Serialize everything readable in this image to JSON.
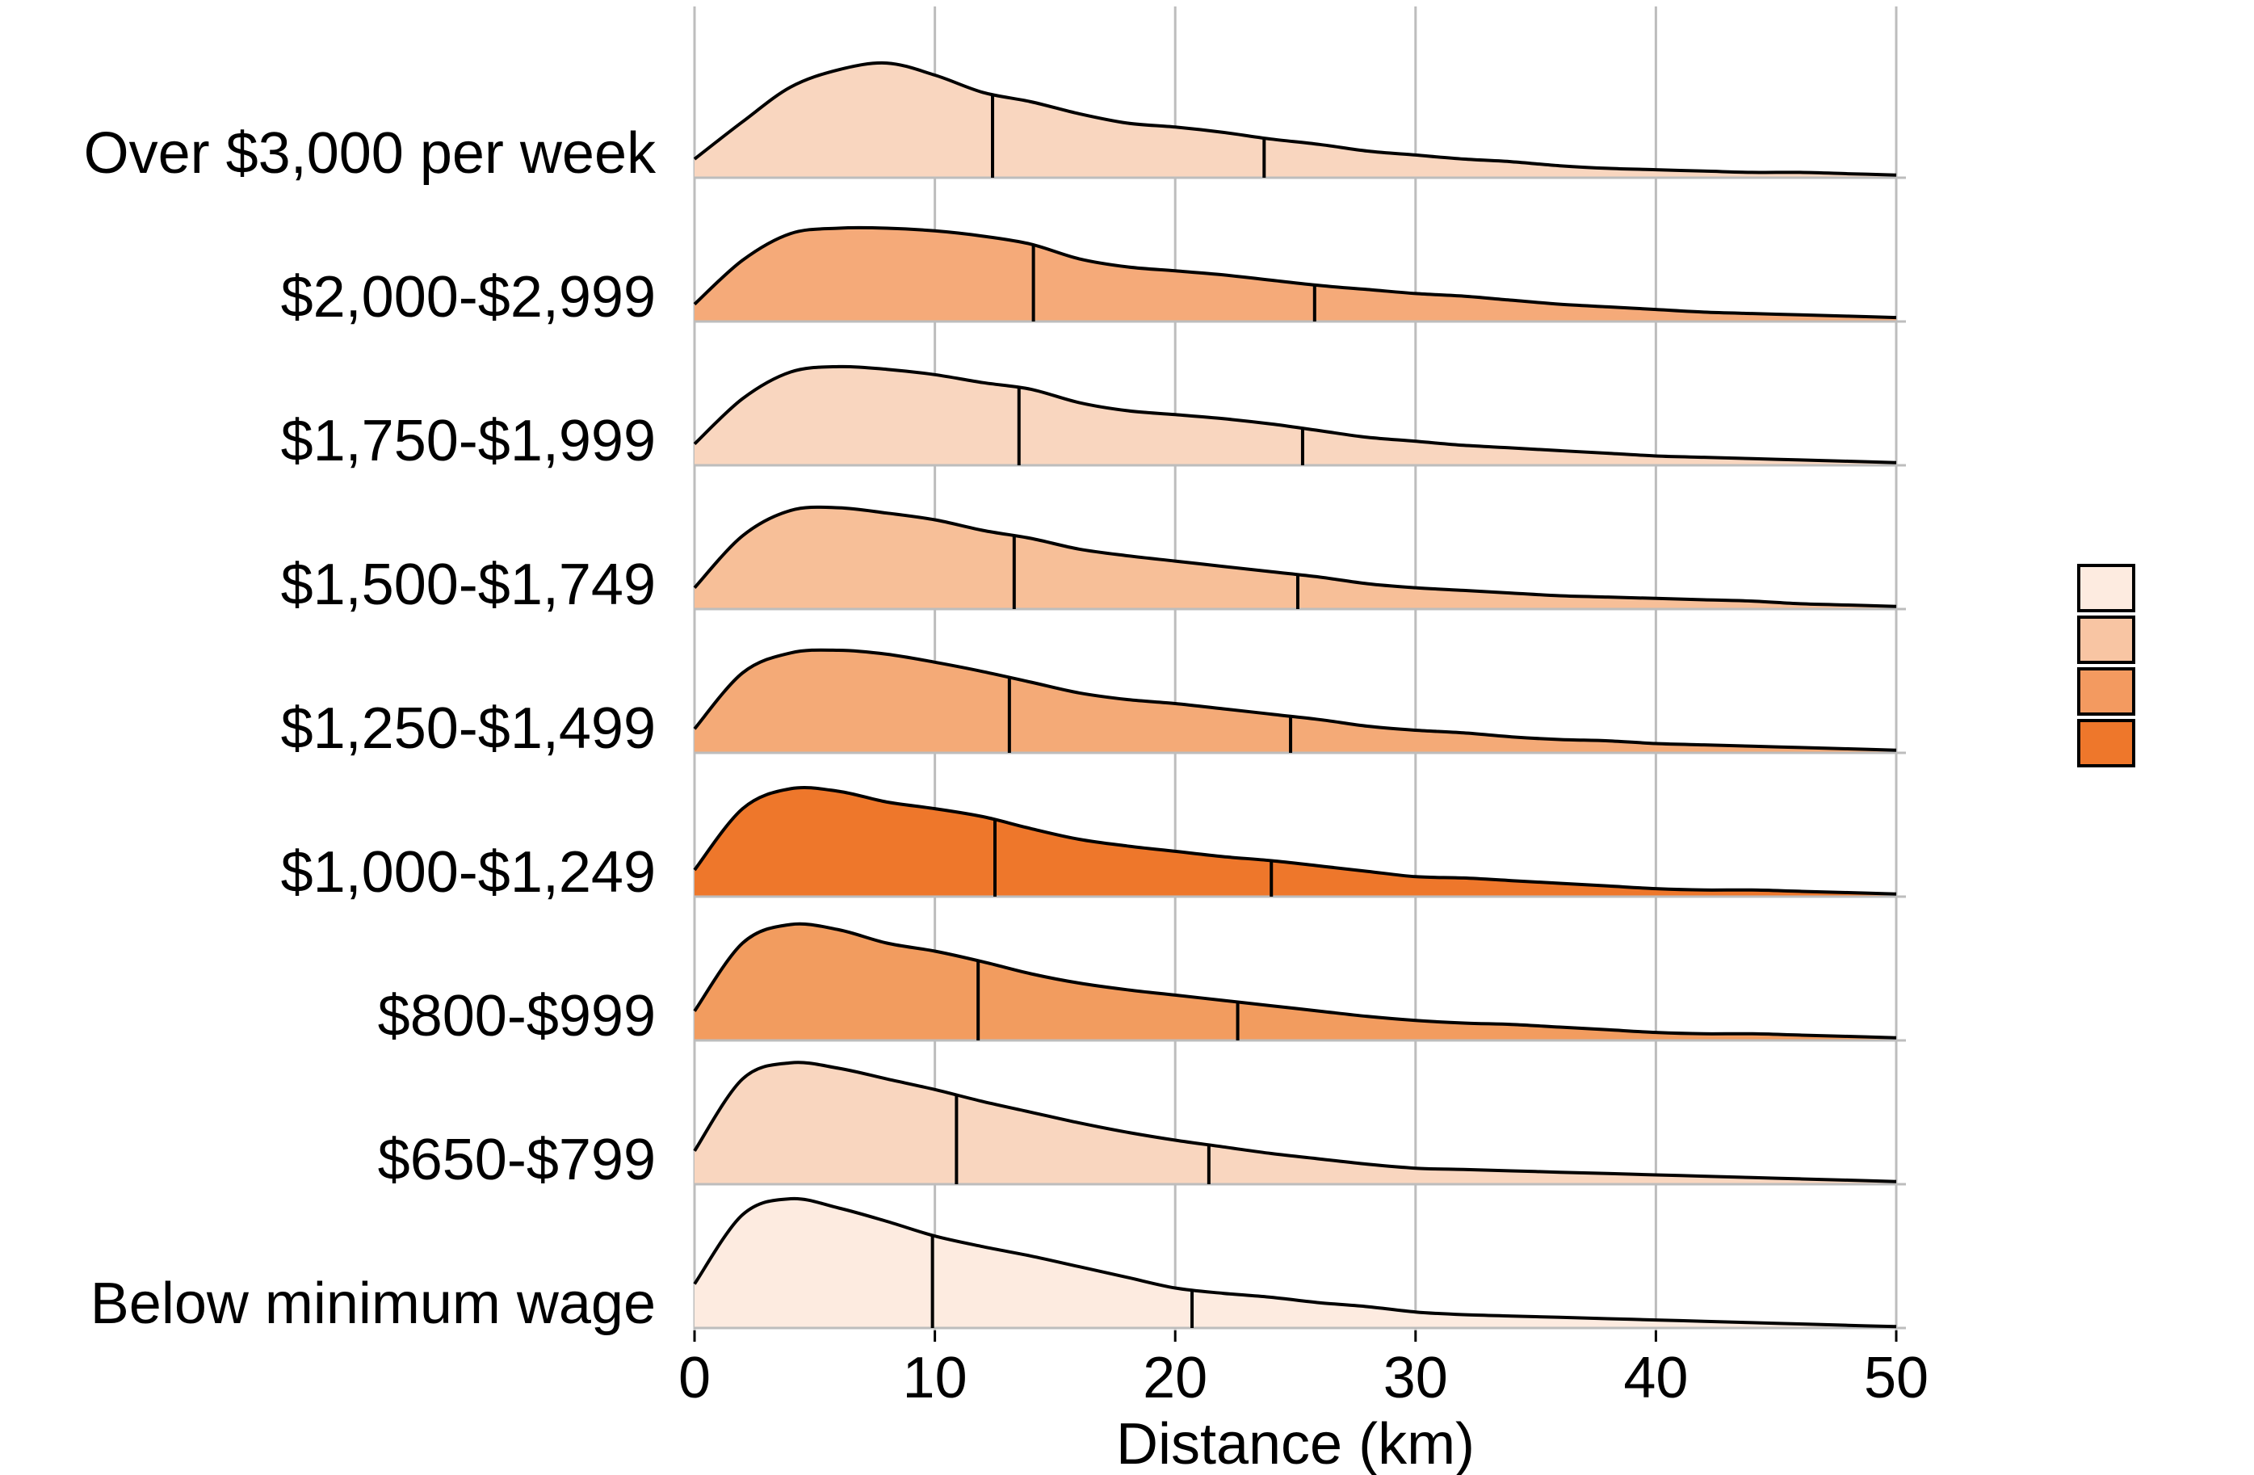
{
  "chart_data": {
    "type": "ridgeline",
    "title": "",
    "xlabel": "Distance (km)",
    "ylabel": "",
    "xlim": [
      0,
      50
    ],
    "xticks": [
      0,
      10,
      20,
      30,
      40,
      50
    ],
    "grid": true,
    "legend_placement": "right",
    "legend_colors": [
      "#fdebe0",
      "#f8c5a3",
      "#f39a60",
      "#ee772b"
    ],
    "categories": [
      "Over $3,000 per week",
      "$2,000-$2,999",
      "$1,750-$1,999",
      "$1,500-$1,749",
      "$1,250-$1,499",
      "$1,000-$1,249",
      "$800-$999",
      "$650-$799",
      "Below minimum wage"
    ],
    "series": [
      {
        "category": "Over $3,000 per week",
        "color": "#f9d6bf",
        "quantiles": [
          12.4,
          23.7
        ],
        "density": [
          [
            0,
            0.14
          ],
          [
            2,
            0.42
          ],
          [
            4,
            0.68
          ],
          [
            6,
            0.81
          ],
          [
            8,
            0.86
          ],
          [
            10,
            0.77
          ],
          [
            12,
            0.64
          ],
          [
            14,
            0.57
          ],
          [
            16,
            0.48
          ],
          [
            18,
            0.41
          ],
          [
            20,
            0.38
          ],
          [
            22,
            0.34
          ],
          [
            24,
            0.29
          ],
          [
            26,
            0.25
          ],
          [
            28,
            0.2
          ],
          [
            30,
            0.17
          ],
          [
            32,
            0.14
          ],
          [
            34,
            0.12
          ],
          [
            36,
            0.09
          ],
          [
            38,
            0.07
          ],
          [
            40,
            0.06
          ],
          [
            42,
            0.05
          ],
          [
            44,
            0.04
          ],
          [
            46,
            0.04
          ],
          [
            48,
            0.03
          ],
          [
            50,
            0.02
          ]
        ]
      },
      {
        "category": "$2,000-$2,999",
        "color": "#f5aa79",
        "quantiles": [
          14.1,
          25.8
        ],
        "density": [
          [
            0,
            0.13
          ],
          [
            2,
            0.46
          ],
          [
            4,
            0.66
          ],
          [
            6,
            0.7
          ],
          [
            8,
            0.7
          ],
          [
            10,
            0.68
          ],
          [
            12,
            0.64
          ],
          [
            14,
            0.58
          ],
          [
            16,
            0.47
          ],
          [
            18,
            0.41
          ],
          [
            20,
            0.38
          ],
          [
            22,
            0.35
          ],
          [
            24,
            0.31
          ],
          [
            26,
            0.27
          ],
          [
            28,
            0.24
          ],
          [
            30,
            0.21
          ],
          [
            32,
            0.19
          ],
          [
            34,
            0.16
          ],
          [
            36,
            0.13
          ],
          [
            38,
            0.11
          ],
          [
            40,
            0.09
          ],
          [
            42,
            0.07
          ],
          [
            44,
            0.06
          ],
          [
            46,
            0.05
          ],
          [
            48,
            0.04
          ],
          [
            50,
            0.03
          ]
        ]
      },
      {
        "category": "$1,750-$1,999",
        "color": "#f9d6bf",
        "quantiles": [
          13.5,
          25.3
        ],
        "density": [
          [
            0,
            0.16
          ],
          [
            2,
            0.5
          ],
          [
            4,
            0.7
          ],
          [
            6,
            0.74
          ],
          [
            8,
            0.72
          ],
          [
            10,
            0.68
          ],
          [
            12,
            0.62
          ],
          [
            14,
            0.57
          ],
          [
            16,
            0.47
          ],
          [
            18,
            0.41
          ],
          [
            20,
            0.38
          ],
          [
            22,
            0.35
          ],
          [
            24,
            0.31
          ],
          [
            26,
            0.26
          ],
          [
            28,
            0.21
          ],
          [
            30,
            0.18
          ],
          [
            32,
            0.15
          ],
          [
            34,
            0.13
          ],
          [
            36,
            0.11
          ],
          [
            38,
            0.09
          ],
          [
            40,
            0.07
          ],
          [
            42,
            0.06
          ],
          [
            44,
            0.05
          ],
          [
            46,
            0.04
          ],
          [
            48,
            0.03
          ],
          [
            50,
            0.02
          ]
        ]
      },
      {
        "category": "$1,500-$1,749",
        "color": "#f7bf98",
        "quantiles": [
          13.3,
          25.1
        ],
        "density": [
          [
            0,
            0.16
          ],
          [
            2,
            0.55
          ],
          [
            4,
            0.74
          ],
          [
            6,
            0.76
          ],
          [
            8,
            0.72
          ],
          [
            10,
            0.67
          ],
          [
            12,
            0.59
          ],
          [
            14,
            0.53
          ],
          [
            16,
            0.45
          ],
          [
            18,
            0.4
          ],
          [
            20,
            0.36
          ],
          [
            22,
            0.32
          ],
          [
            24,
            0.28
          ],
          [
            26,
            0.24
          ],
          [
            28,
            0.19
          ],
          [
            30,
            0.16
          ],
          [
            32,
            0.14
          ],
          [
            34,
            0.12
          ],
          [
            36,
            0.1
          ],
          [
            38,
            0.09
          ],
          [
            40,
            0.08
          ],
          [
            42,
            0.07
          ],
          [
            44,
            0.06
          ],
          [
            46,
            0.04
          ],
          [
            48,
            0.03
          ],
          [
            50,
            0.02
          ]
        ]
      },
      {
        "category": "$1,250-$1,499",
        "color": "#f4aa77",
        "quantiles": [
          13.1,
          24.8
        ],
        "density": [
          [
            0,
            0.18
          ],
          [
            2,
            0.6
          ],
          [
            4,
            0.75
          ],
          [
            6,
            0.77
          ],
          [
            8,
            0.74
          ],
          [
            10,
            0.68
          ],
          [
            12,
            0.61
          ],
          [
            14,
            0.53
          ],
          [
            16,
            0.45
          ],
          [
            18,
            0.4
          ],
          [
            20,
            0.37
          ],
          [
            22,
            0.33
          ],
          [
            24,
            0.29
          ],
          [
            26,
            0.25
          ],
          [
            28,
            0.2
          ],
          [
            30,
            0.17
          ],
          [
            32,
            0.15
          ],
          [
            34,
            0.12
          ],
          [
            36,
            0.1
          ],
          [
            38,
            0.09
          ],
          [
            40,
            0.07
          ],
          [
            42,
            0.06
          ],
          [
            44,
            0.05
          ],
          [
            46,
            0.04
          ],
          [
            48,
            0.03
          ],
          [
            50,
            0.02
          ]
        ]
      },
      {
        "category": "$1,000-$1,249",
        "color": "#ee772b",
        "quantiles": [
          12.5,
          24.0
        ],
        "density": [
          [
            0,
            0.2
          ],
          [
            2,
            0.66
          ],
          [
            4,
            0.81
          ],
          [
            6,
            0.79
          ],
          [
            8,
            0.71
          ],
          [
            10,
            0.66
          ],
          [
            12,
            0.6
          ],
          [
            14,
            0.51
          ],
          [
            16,
            0.43
          ],
          [
            18,
            0.38
          ],
          [
            20,
            0.34
          ],
          [
            22,
            0.3
          ],
          [
            24,
            0.27
          ],
          [
            26,
            0.23
          ],
          [
            28,
            0.19
          ],
          [
            30,
            0.15
          ],
          [
            32,
            0.14
          ],
          [
            34,
            0.12
          ],
          [
            36,
            0.1
          ],
          [
            38,
            0.08
          ],
          [
            40,
            0.06
          ],
          [
            42,
            0.05
          ],
          [
            44,
            0.05
          ],
          [
            46,
            0.04
          ],
          [
            48,
            0.03
          ],
          [
            50,
            0.02
          ]
        ]
      },
      {
        "category": "$800-$999",
        "color": "#f29c5f",
        "quantiles": [
          11.8,
          22.6
        ],
        "density": [
          [
            0,
            0.22
          ],
          [
            2,
            0.73
          ],
          [
            4,
            0.87
          ],
          [
            6,
            0.83
          ],
          [
            8,
            0.73
          ],
          [
            10,
            0.67
          ],
          [
            12,
            0.59
          ],
          [
            14,
            0.5
          ],
          [
            16,
            0.43
          ],
          [
            18,
            0.38
          ],
          [
            20,
            0.34
          ],
          [
            22,
            0.3
          ],
          [
            24,
            0.26
          ],
          [
            26,
            0.22
          ],
          [
            28,
            0.18
          ],
          [
            30,
            0.15
          ],
          [
            32,
            0.13
          ],
          [
            34,
            0.12
          ],
          [
            36,
            0.1
          ],
          [
            38,
            0.08
          ],
          [
            40,
            0.06
          ],
          [
            42,
            0.05
          ],
          [
            44,
            0.05
          ],
          [
            46,
            0.04
          ],
          [
            48,
            0.03
          ],
          [
            50,
            0.02
          ]
        ]
      },
      {
        "category": "$650-$799",
        "color": "#f9d6bf",
        "quantiles": [
          10.9,
          21.4
        ],
        "density": [
          [
            0,
            0.25
          ],
          [
            2,
            0.79
          ],
          [
            4,
            0.91
          ],
          [
            6,
            0.87
          ],
          [
            8,
            0.79
          ],
          [
            10,
            0.71
          ],
          [
            12,
            0.62
          ],
          [
            14,
            0.54
          ],
          [
            16,
            0.46
          ],
          [
            18,
            0.39
          ],
          [
            20,
            0.33
          ],
          [
            22,
            0.28
          ],
          [
            24,
            0.23
          ],
          [
            26,
            0.19
          ],
          [
            28,
            0.15
          ],
          [
            30,
            0.12
          ],
          [
            32,
            0.11
          ],
          [
            34,
            0.1
          ],
          [
            36,
            0.09
          ],
          [
            38,
            0.08
          ],
          [
            40,
            0.07
          ],
          [
            42,
            0.06
          ],
          [
            44,
            0.05
          ],
          [
            46,
            0.04
          ],
          [
            48,
            0.03
          ],
          [
            50,
            0.02
          ]
        ]
      },
      {
        "category": "Below minimum wage",
        "color": "#fdebe0",
        "quantiles": [
          9.9,
          20.7
        ],
        "density": [
          [
            0,
            0.33
          ],
          [
            2,
            0.85
          ],
          [
            4,
            0.97
          ],
          [
            6,
            0.9
          ],
          [
            8,
            0.8
          ],
          [
            10,
            0.69
          ],
          [
            12,
            0.61
          ],
          [
            14,
            0.54
          ],
          [
            16,
            0.46
          ],
          [
            18,
            0.38
          ],
          [
            20,
            0.3
          ],
          [
            22,
            0.26
          ],
          [
            24,
            0.23
          ],
          [
            26,
            0.19
          ],
          [
            28,
            0.16
          ],
          [
            30,
            0.12
          ],
          [
            32,
            0.1
          ],
          [
            34,
            0.09
          ],
          [
            36,
            0.08
          ],
          [
            38,
            0.07
          ],
          [
            40,
            0.06
          ],
          [
            42,
            0.05
          ],
          [
            44,
            0.04
          ],
          [
            46,
            0.03
          ],
          [
            48,
            0.02
          ],
          [
            50,
            0.01
          ]
        ]
      }
    ]
  }
}
